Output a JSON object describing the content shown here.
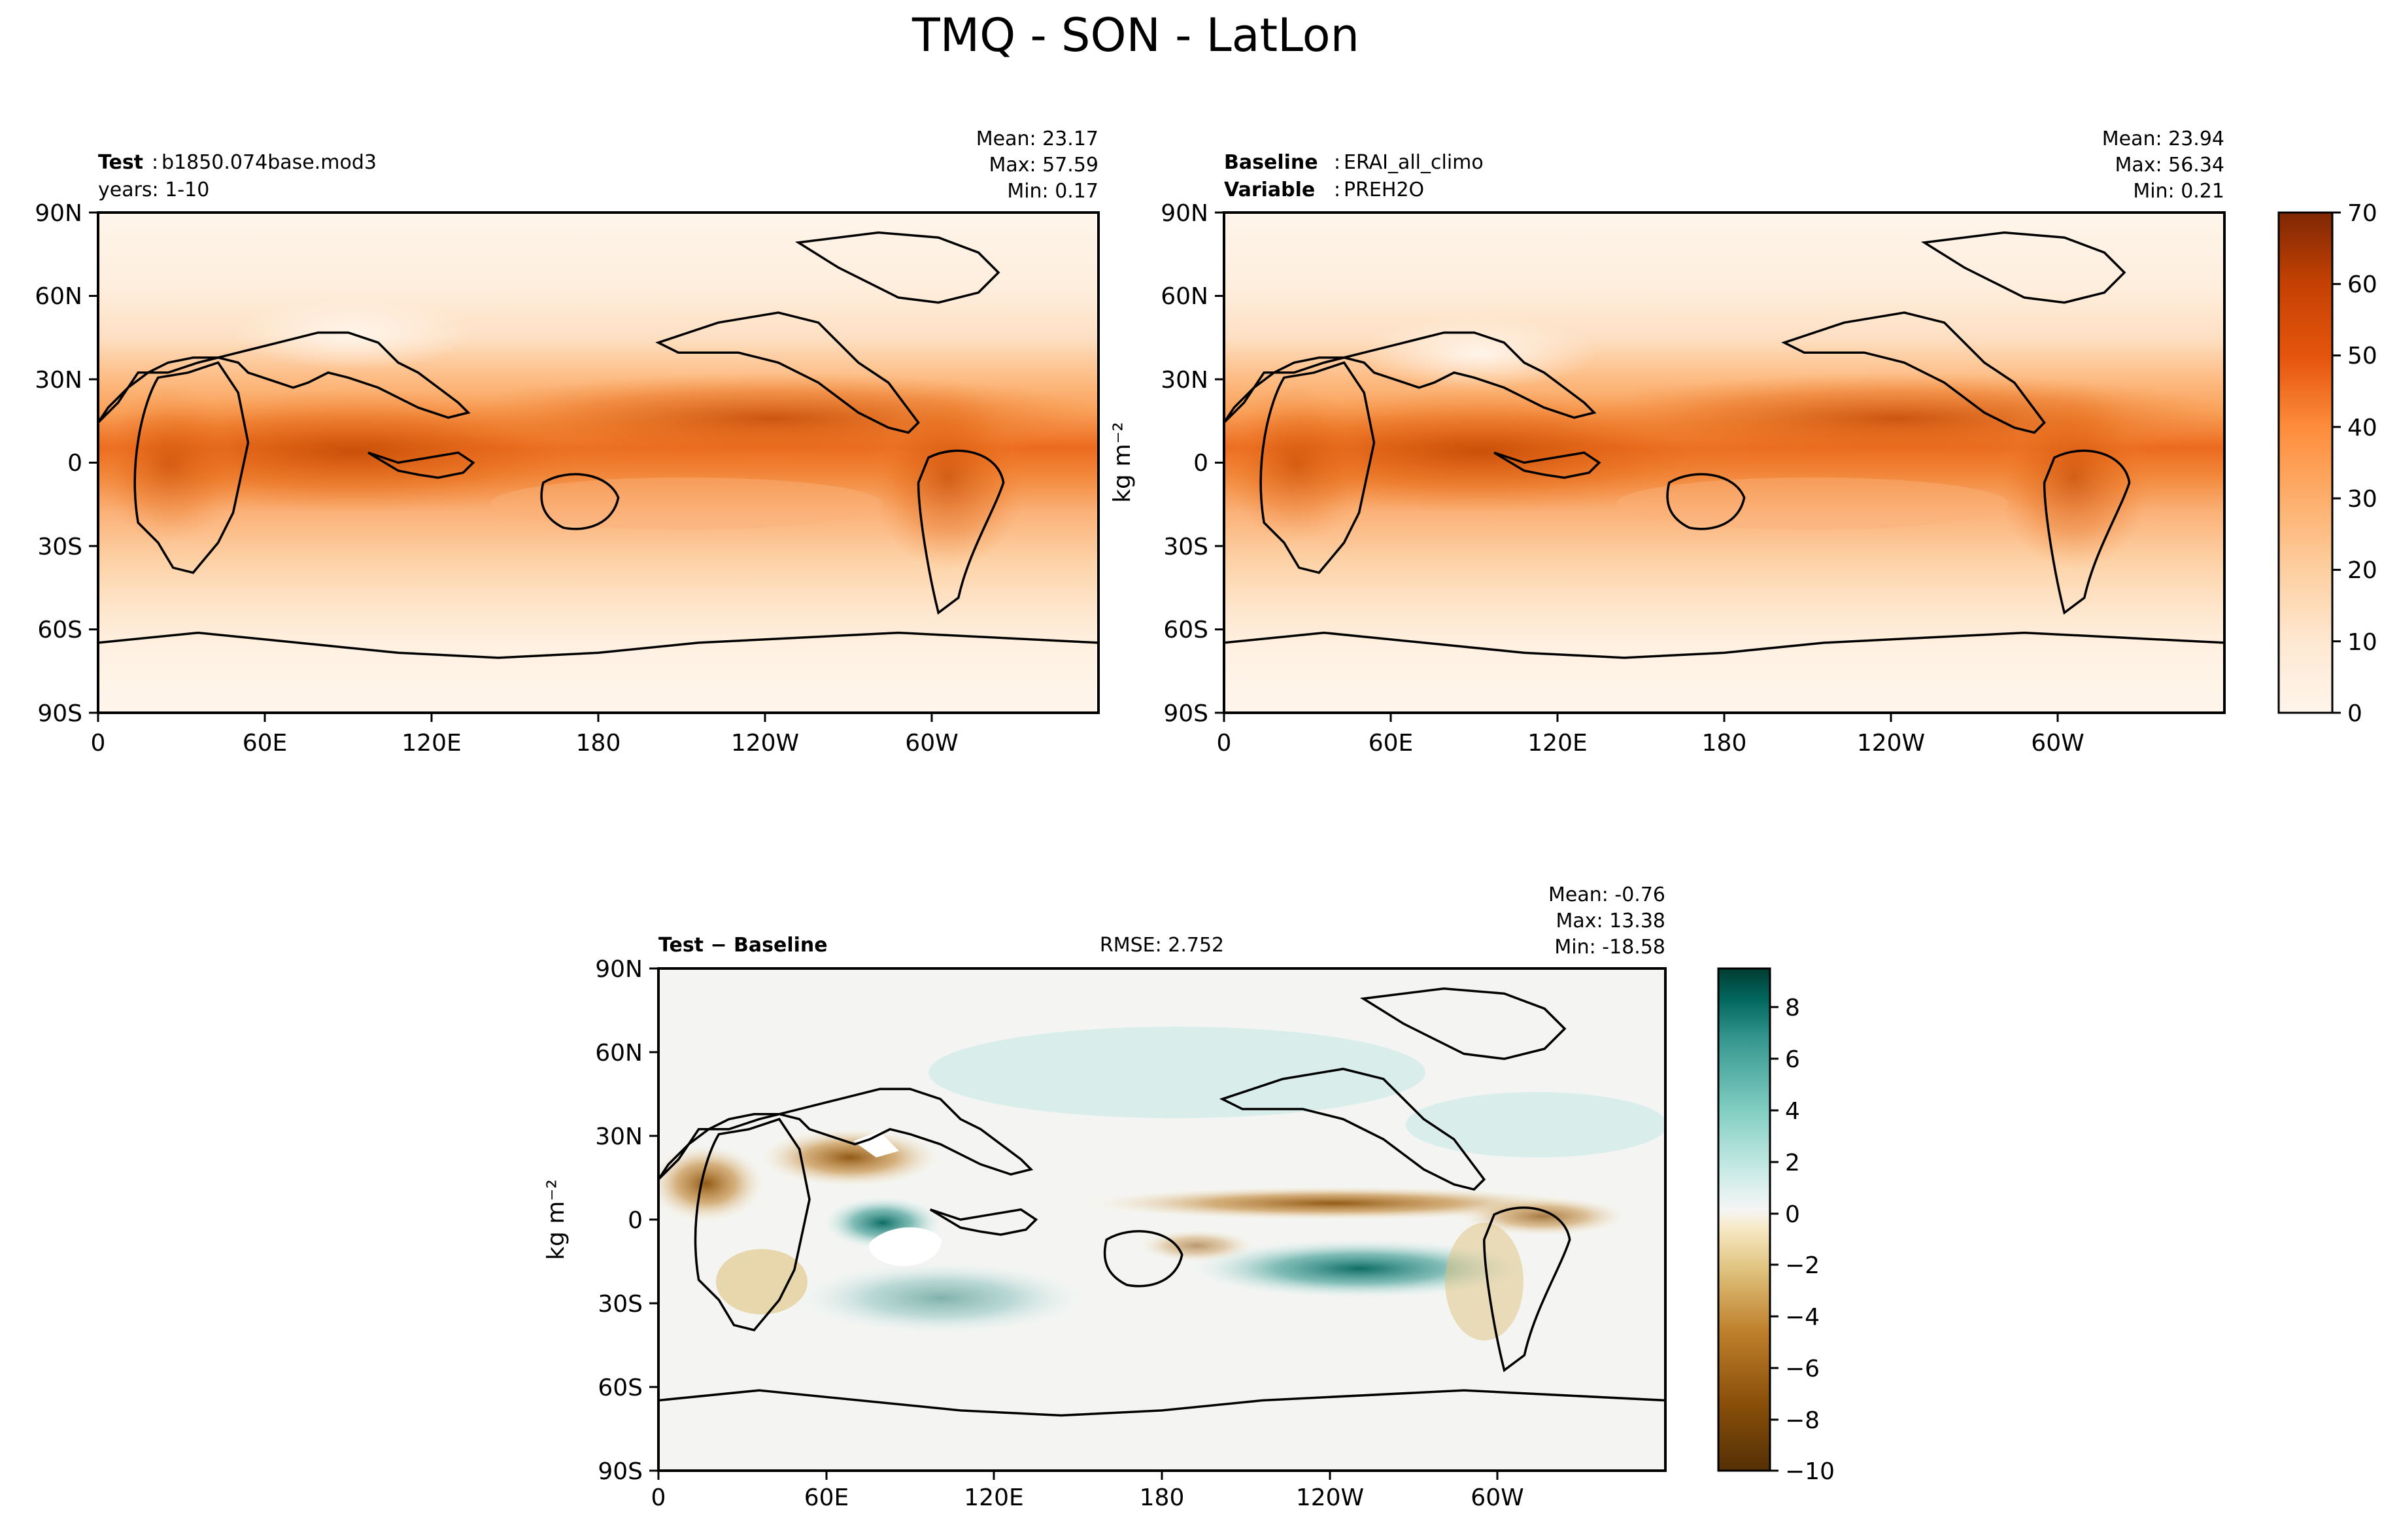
{
  "figure": {
    "title": "TMQ - SON - LatLon"
  },
  "chart_data": [
    {
      "type": "heatmap",
      "panel": "test",
      "header": {
        "line1_bold": "Test",
        "line1": "b1850.074base.mod3",
        "line2": "years: 1-10"
      },
      "stats": {
        "mean": "Mean: 23.17",
        "max": "Max: 57.59",
        "min": "Min:  0.17"
      },
      "x_ticks": [
        "0",
        "60E",
        "120E",
        "180",
        "120W",
        "60W"
      ],
      "y_ticks": [
        "90N",
        "60N",
        "30N",
        "0",
        "30S",
        "60S",
        "90S"
      ],
      "xlim": [
        0,
        360
      ],
      "ylim": [
        -90,
        90
      ],
      "colormap": "Oranges",
      "clim": [
        0,
        70
      ]
    },
    {
      "type": "heatmap",
      "panel": "baseline",
      "header": {
        "line1_bold": "Baseline",
        "line1": "ERAI_all_climo",
        "line2_bold": "Variable",
        "line2": "PREH2O"
      },
      "stats": {
        "mean": "Mean: 23.94",
        "max": "Max: 56.34",
        "min": "Min:  0.21"
      },
      "x_ticks": [
        "0",
        "60E",
        "120E",
        "180",
        "120W",
        "60W"
      ],
      "y_ticks": [
        "90N",
        "60N",
        "30N",
        "0",
        "30S",
        "60S",
        "90S"
      ],
      "xlim": [
        0,
        360
      ],
      "ylim": [
        -90,
        90
      ],
      "colormap": "Oranges",
      "clim": [
        0,
        70
      ]
    },
    {
      "type": "heatmap",
      "panel": "difference",
      "header": {
        "line1_bold": "Test − Baseline",
        "rmse": "RMSE: 2.752"
      },
      "stats": {
        "mean": "Mean: -0.76",
        "max": "Max: 13.38",
        "min": "Min: -18.58"
      },
      "x_ticks": [
        "0",
        "60E",
        "120E",
        "180",
        "120W",
        "60W"
      ],
      "y_ticks": [
        "90N",
        "60N",
        "30N",
        "0",
        "30S",
        "60S",
        "90S"
      ],
      "xlim": [
        0,
        360
      ],
      "ylim": [
        -90,
        90
      ],
      "ylabel": "kg m⁻²",
      "colormap": "BrBG",
      "clim": [
        -10,
        9.5
      ]
    }
  ],
  "colorbars": {
    "absolute": {
      "ticks": [
        "0",
        "10",
        "20",
        "30",
        "40",
        "50",
        "60",
        "70"
      ],
      "label": "kg m⁻²",
      "colors": [
        "#fff5eb",
        "#fee8d2",
        "#fdd8b4",
        "#fdc692",
        "#fdae6b",
        "#fd9649",
        "#f67f2c",
        "#e95f0e",
        "#d24802",
        "#b53a03",
        "#8f2d04",
        "#7f2704"
      ]
    },
    "diff": {
      "ticks": [
        "8",
        "6",
        "4",
        "2",
        "0",
        "−2",
        "−4",
        "−6",
        "−8",
        "−10"
      ],
      "label": "kg m⁻²",
      "colors": [
        "#003c30",
        "#01665e",
        "#35978f",
        "#80cdc1",
        "#c7eae5",
        "#f5f5f5",
        "#f6e8c3",
        "#dfc27d",
        "#bf812d",
        "#8c510a",
        "#543005"
      ]
    }
  }
}
